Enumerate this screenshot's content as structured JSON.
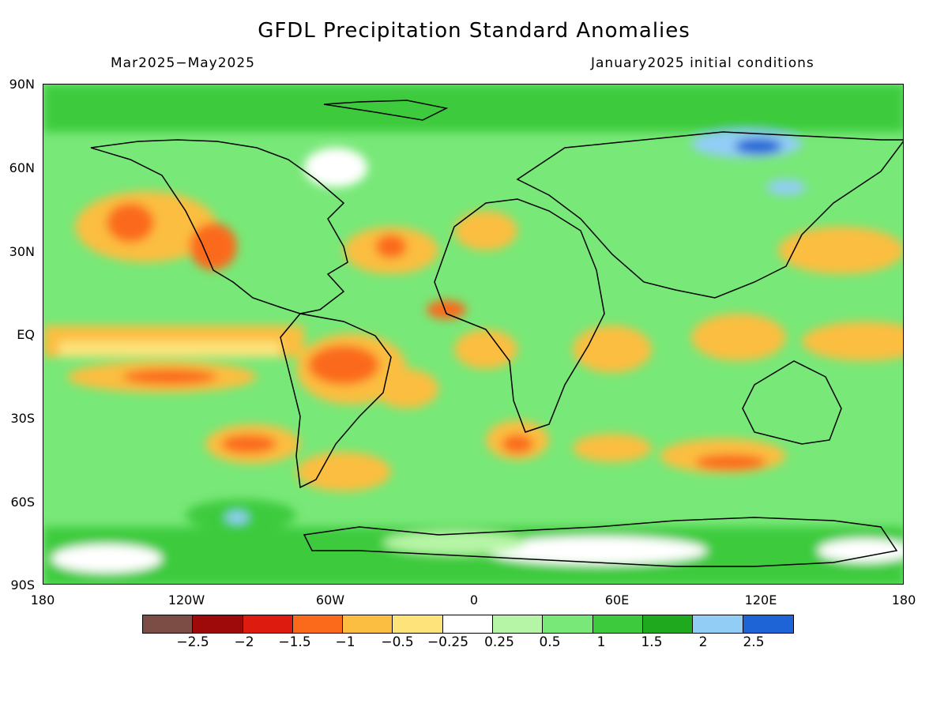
{
  "title": "GFDL Precipitation Standard Anomalies",
  "subtitle_left": "Mar2025−May2025",
  "subtitle_right": "January2025 initial conditions",
  "y_ticks": [
    "90N",
    "60N",
    "30N",
    "EQ",
    "30S",
    "60S",
    "90S"
  ],
  "x_ticks": [
    "180",
    "120W",
    "60W",
    "0",
    "60E",
    "120E",
    "180"
  ],
  "legend": {
    "colors": [
      "#7b4d45",
      "#9e0a0a",
      "#de1b0f",
      "#fb6a1b",
      "#fbbe41",
      "#fde37a",
      "#ffffff",
      "#b6f5a6",
      "#78e878",
      "#3dcb3d",
      "#1ea91e",
      "#92cdf6",
      "#1e64d6"
    ],
    "labels": [
      "−2.5",
      "−2",
      "−1.5",
      "−1",
      "−0.5",
      "−0.25",
      "0.25",
      "0.5",
      "1",
      "1.5",
      "2",
      "2.5"
    ]
  }
}
